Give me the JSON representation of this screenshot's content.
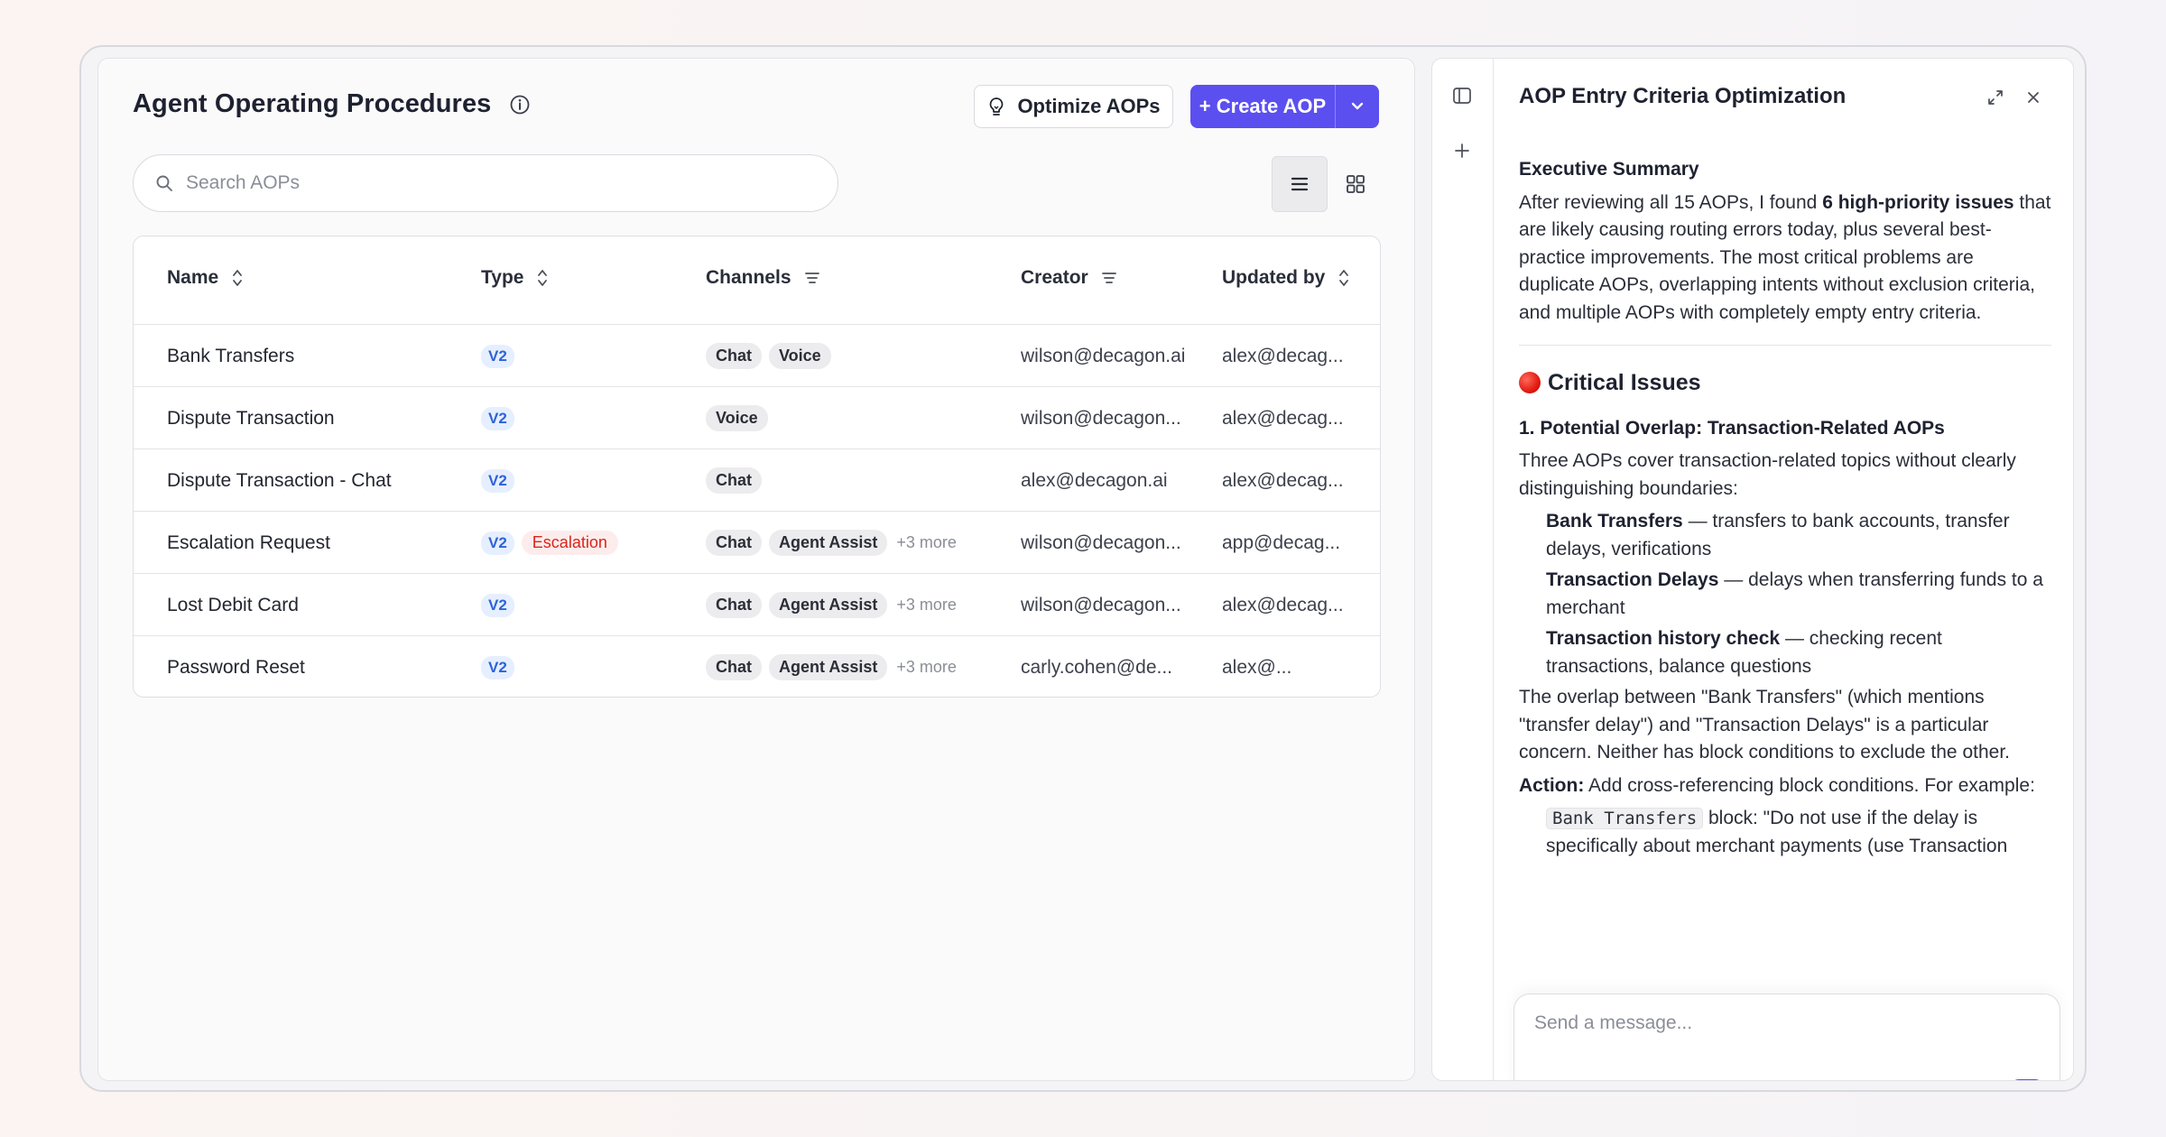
{
  "page": {
    "title": "Agent Operating Procedures",
    "optimize_label": "Optimize AOPs",
    "create_label": "+ Create AOP",
    "search_placeholder": "Search AOPs"
  },
  "table": {
    "columns": [
      "Name",
      "Type",
      "Channels",
      "Creator",
      "Updated by"
    ],
    "rows": [
      {
        "name": "Bank Transfers",
        "type": "V2",
        "tag": "",
        "channels": [
          "Chat",
          "Voice"
        ],
        "more": "",
        "creator": "wilson@decagon.ai",
        "updated_by": "alex@decag..."
      },
      {
        "name": "Dispute Transaction",
        "type": "V2",
        "tag": "",
        "channels": [
          "Voice"
        ],
        "more": "",
        "creator": "wilson@decagon...",
        "updated_by": "alex@decag..."
      },
      {
        "name": "Dispute Transaction - Chat",
        "type": "V2",
        "tag": "",
        "channels": [
          "Chat"
        ],
        "more": "",
        "creator": "alex@decagon.ai",
        "updated_by": "alex@decag..."
      },
      {
        "name": "Escalation Request",
        "type": "V2",
        "tag": "Escalation",
        "channels": [
          "Chat",
          "Agent Assist"
        ],
        "more": "+3 more",
        "creator": "wilson@decagon...",
        "updated_by": "app@decag..."
      },
      {
        "name": "Lost Debit Card",
        "type": "V2",
        "tag": "",
        "channels": [
          "Chat",
          "Agent Assist"
        ],
        "more": "+3 more",
        "creator": "wilson@decagon...",
        "updated_by": "alex@decag..."
      },
      {
        "name": "Password Reset",
        "type": "V2",
        "tag": "",
        "channels": [
          "Chat",
          "Agent Assist"
        ],
        "more": "+3 more",
        "creator": "carly.cohen@de...",
        "updated_by": "alex@..."
      }
    ]
  },
  "panel": {
    "title": "AOP Entry Criteria Optimization",
    "exec_heading": "Executive Summary",
    "exec_1": "After reviewing all 15 AOPs, I found ",
    "exec_bold": "6 high-priority issues",
    "exec_2": " that are likely causing routing errors today, plus several best-practice improvements. The most critical problems are duplicate AOPs, overlapping intents without exclusion criteria, and multiple AOPs with completely empty entry criteria.",
    "critical_heading": "Critical Issues",
    "issue_1_heading": "1. Potential Overlap: Transaction-Related AOPs",
    "issue_1_intro": "Three AOPs cover transaction-related topics without clearly distinguishing boundaries:",
    "items": [
      {
        "bold": "Bank Transfers",
        "text": " — transfers to bank accounts, transfer delays, verifications"
      },
      {
        "bold": "Transaction Delays",
        "text": " — delays when transferring funds to a merchant"
      },
      {
        "bold": "Transaction history check",
        "text": " — checking recent transactions, balance questions"
      }
    ],
    "overlap_text": "The overlap between \"Bank Transfers\" (which mentions \"transfer delay\") and \"Transaction Delays\" is a particular concern. Neither has block conditions to exclude the other.",
    "action_label": "Action:",
    "action_text": " Add cross-referencing block conditions. For example:",
    "code_label": "Bank Transfers",
    "code_text": " block: \"Do not use if the delay is specifically about merchant payments (use Transaction",
    "composer_placeholder": "Send a message..."
  }
}
